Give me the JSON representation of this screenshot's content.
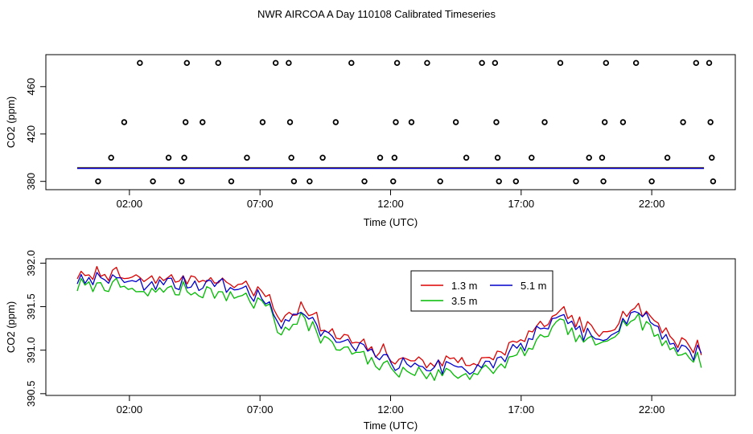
{
  "title": "NWR AIRCOA A  Day 110108  Calibrated Timeseries",
  "chart_data": [
    {
      "type": "scatter",
      "xlabel": "Time (UTC)",
      "ylabel": "CO2 (ppm)",
      "xlim": [
        -1.2,
        25.2
      ],
      "ylim": [
        373,
        487
      ],
      "xticks": [
        {
          "value": 2,
          "label": "02:00"
        },
        {
          "value": 7,
          "label": "07:00"
        },
        {
          "value": 12,
          "label": "12:00"
        },
        {
          "value": 17,
          "label": "17:00"
        },
        {
          "value": 22,
          "label": "22:00"
        }
      ],
      "yticks": [
        {
          "value": 380,
          "label": "380"
        },
        {
          "value": 420,
          "label": "420"
        },
        {
          "value": 460,
          "label": "460"
        }
      ],
      "points": [
        {
          "x": 0.8,
          "y": 380
        },
        {
          "x": 1.3,
          "y": 400
        },
        {
          "x": 1.8,
          "y": 430
        },
        {
          "x": 2.4,
          "y": 480
        },
        {
          "x": 2.9,
          "y": 380
        },
        {
          "x": 3.5,
          "y": 400
        },
        {
          "x": 4.0,
          "y": 380
        },
        {
          "x": 4.1,
          "y": 400
        },
        {
          "x": 4.15,
          "y": 430
        },
        {
          "x": 4.2,
          "y": 480
        },
        {
          "x": 4.8,
          "y": 430
        },
        {
          "x": 5.4,
          "y": 480
        },
        {
          "x": 5.9,
          "y": 380
        },
        {
          "x": 6.5,
          "y": 400
        },
        {
          "x": 7.1,
          "y": 430
        },
        {
          "x": 7.6,
          "y": 480
        },
        {
          "x": 8.1,
          "y": 480
        },
        {
          "x": 8.15,
          "y": 430
        },
        {
          "x": 8.2,
          "y": 400
        },
        {
          "x": 8.3,
          "y": 380
        },
        {
          "x": 8.9,
          "y": 380
        },
        {
          "x": 9.4,
          "y": 400
        },
        {
          "x": 9.9,
          "y": 430
        },
        {
          "x": 10.5,
          "y": 480
        },
        {
          "x": 11.0,
          "y": 380
        },
        {
          "x": 11.6,
          "y": 400
        },
        {
          "x": 12.1,
          "y": 380
        },
        {
          "x": 12.15,
          "y": 400
        },
        {
          "x": 12.2,
          "y": 430
        },
        {
          "x": 12.25,
          "y": 480
        },
        {
          "x": 12.8,
          "y": 430
        },
        {
          "x": 13.4,
          "y": 480
        },
        {
          "x": 13.9,
          "y": 380
        },
        {
          "x": 14.5,
          "y": 430
        },
        {
          "x": 14.9,
          "y": 400
        },
        {
          "x": 15.5,
          "y": 480
        },
        {
          "x": 16.0,
          "y": 480
        },
        {
          "x": 16.05,
          "y": 430
        },
        {
          "x": 16.1,
          "y": 400
        },
        {
          "x": 16.15,
          "y": 380
        },
        {
          "x": 16.8,
          "y": 380
        },
        {
          "x": 17.4,
          "y": 400
        },
        {
          "x": 17.9,
          "y": 430
        },
        {
          "x": 18.5,
          "y": 480
        },
        {
          "x": 19.1,
          "y": 380
        },
        {
          "x": 19.6,
          "y": 400
        },
        {
          "x": 20.1,
          "y": 400
        },
        {
          "x": 20.15,
          "y": 380
        },
        {
          "x": 20.2,
          "y": 430
        },
        {
          "x": 20.25,
          "y": 480
        },
        {
          "x": 20.9,
          "y": 430
        },
        {
          "x": 21.4,
          "y": 480
        },
        {
          "x": 22.0,
          "y": 380
        },
        {
          "x": 22.6,
          "y": 400
        },
        {
          "x": 23.2,
          "y": 430
        },
        {
          "x": 23.7,
          "y": 480
        },
        {
          "x": 24.2,
          "y": 480
        },
        {
          "x": 24.25,
          "y": 430
        },
        {
          "x": 24.3,
          "y": 400
        },
        {
          "x": 24.35,
          "y": 380
        }
      ],
      "baseline": {
        "x_start": 0.0,
        "x_end": 24.0,
        "y": 391.3
      }
    },
    {
      "type": "line",
      "xlabel": "Time (UTC)",
      "ylabel": "CO2 (ppm)",
      "xlim": [
        -1.2,
        25.2
      ],
      "ylim": [
        390.48,
        392.05
      ],
      "xticks": [
        {
          "value": 2,
          "label": "02:00"
        },
        {
          "value": 7,
          "label": "07:00"
        },
        {
          "value": 12,
          "label": "12:00"
        },
        {
          "value": 17,
          "label": "17:00"
        },
        {
          "value": 22,
          "label": "22:00"
        }
      ],
      "yticks": [
        {
          "value": 390.5,
          "label": "390.5"
        },
        {
          "value": 391.0,
          "label": "391.0"
        },
        {
          "value": 391.5,
          "label": "391.5"
        },
        {
          "value": 392.0,
          "label": "392.0"
        }
      ],
      "legend_position": "top-center",
      "series": [
        {
          "name": "1.3 m",
          "color": "#dd0000",
          "offset": 0.06,
          "seed": 11
        },
        {
          "name": "3.5 m",
          "color": "#00bb00",
          "offset": -0.08,
          "seed": 29
        },
        {
          "name": "5.1 m",
          "color": "#0000cc",
          "offset": 0.0,
          "seed": 47
        }
      ],
      "x_start": 0.0,
      "x_end": 23.9,
      "n_points": 160,
      "trend": [
        {
          "x": 0.0,
          "y": 391.82
        },
        {
          "x": 0.5,
          "y": 391.78
        },
        {
          "x": 1.0,
          "y": 391.86
        },
        {
          "x": 1.5,
          "y": 391.8
        },
        {
          "x": 2.5,
          "y": 391.74
        },
        {
          "x": 3.5,
          "y": 391.78
        },
        {
          "x": 4.5,
          "y": 391.76
        },
        {
          "x": 5.5,
          "y": 391.74
        },
        {
          "x": 6.0,
          "y": 391.7
        },
        {
          "x": 6.8,
          "y": 391.64
        },
        {
          "x": 7.3,
          "y": 391.55
        },
        {
          "x": 7.8,
          "y": 391.3
        },
        {
          "x": 8.2,
          "y": 391.35
        },
        {
          "x": 8.6,
          "y": 391.5
        },
        {
          "x": 9.0,
          "y": 391.35
        },
        {
          "x": 9.6,
          "y": 391.15
        },
        {
          "x": 10.5,
          "y": 391.05
        },
        {
          "x": 11.5,
          "y": 390.93
        },
        {
          "x": 12.5,
          "y": 390.82
        },
        {
          "x": 13.5,
          "y": 390.8
        },
        {
          "x": 14.5,
          "y": 390.82
        },
        {
          "x": 15.5,
          "y": 390.8
        },
        {
          "x": 16.5,
          "y": 390.95
        },
        {
          "x": 17.5,
          "y": 391.15
        },
        {
          "x": 18.0,
          "y": 391.3
        },
        {
          "x": 18.6,
          "y": 391.38
        },
        {
          "x": 19.3,
          "y": 391.2
        },
        {
          "x": 20.0,
          "y": 391.12
        },
        {
          "x": 20.6,
          "y": 391.28
        },
        {
          "x": 21.2,
          "y": 391.42
        },
        {
          "x": 21.8,
          "y": 391.38
        },
        {
          "x": 22.4,
          "y": 391.18
        },
        {
          "x": 23.0,
          "y": 391.05
        },
        {
          "x": 23.5,
          "y": 390.98
        },
        {
          "x": 23.9,
          "y": 390.98
        }
      ]
    }
  ]
}
